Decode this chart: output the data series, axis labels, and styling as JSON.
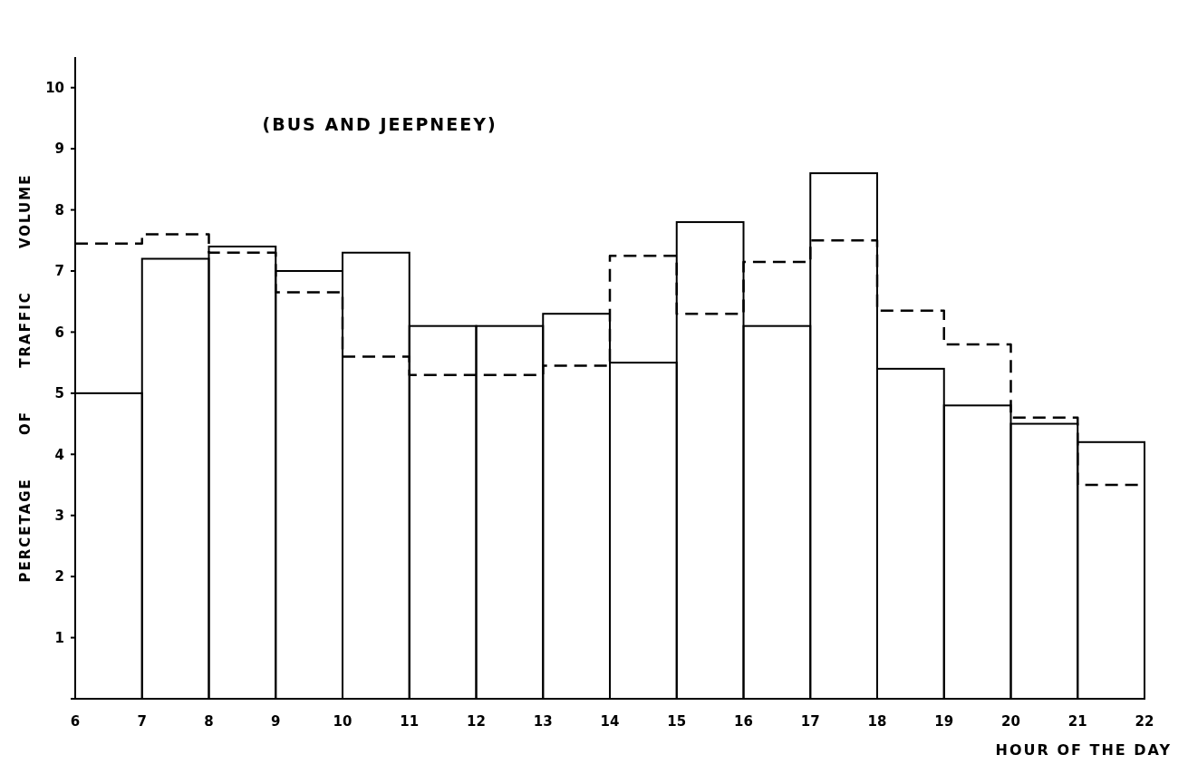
{
  "chart_data": {
    "type": "histogram",
    "title": "(BUS AND JEEPNEEY)",
    "xlabel": "HOUR OF THE DAY",
    "ylabel": "PERCETAGE OF TRAFFIC VOLUME",
    "bins": [
      6,
      7,
      8,
      9,
      10,
      11,
      12,
      13,
      14,
      15,
      16,
      17,
      18,
      19,
      20,
      21,
      22
    ],
    "series": [
      {
        "color": "#000000",
        "line_style": "solid",
        "values": [
          5.0,
          7.2,
          7.4,
          7.0,
          7.3,
          6.1,
          6.1,
          6.3,
          5.5,
          7.8,
          6.1,
          8.6,
          5.4,
          4.8,
          4.5,
          4.2
        ]
      },
      {
        "color": "#000000",
        "line_style": "dashed",
        "values": [
          7.45,
          7.6,
          7.3,
          6.65,
          5.6,
          5.3,
          5.3,
          5.45,
          7.25,
          6.3,
          7.15,
          7.5,
          6.35,
          5.8,
          4.6,
          3.5
        ]
      }
    ],
    "xlim": [
      6,
      22
    ],
    "xticks": [
      6,
      7,
      8,
      9,
      10,
      11,
      12,
      13,
      14,
      15,
      16,
      17,
      18,
      19,
      20,
      21,
      22
    ],
    "ylim": [
      0,
      10.5
    ],
    "yticks": [
      {
        "value": 0,
        "label": null
      },
      1,
      2,
      3,
      4,
      5,
      6,
      7,
      8,
      9,
      10
    ],
    "grid": false
  }
}
